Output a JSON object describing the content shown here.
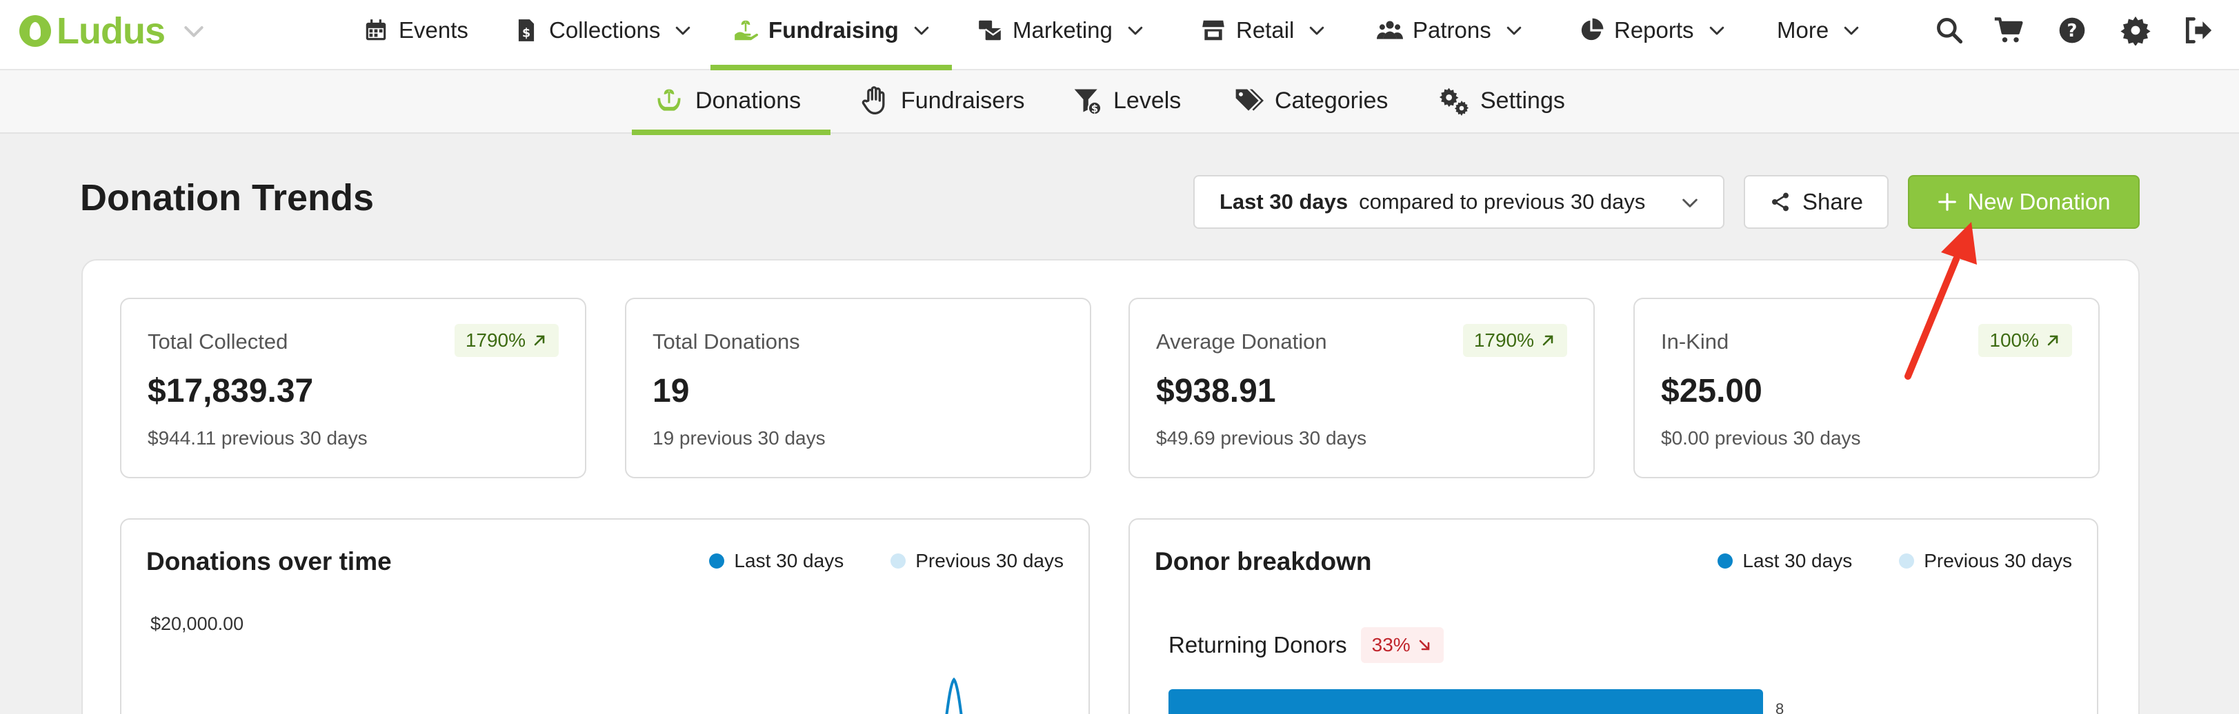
{
  "app": {
    "logo_text": "Ludus"
  },
  "nav": {
    "items": [
      {
        "label": "Events",
        "icon": "calendar-icon"
      },
      {
        "label": "Collections",
        "icon": "invoice-dollar-icon"
      },
      {
        "label": "Fundraising",
        "icon": "hand-holding-seedling-icon",
        "active": true
      },
      {
        "label": "Marketing",
        "icon": "mail-bulk-icon"
      },
      {
        "label": "Retail",
        "icon": "store-icon"
      },
      {
        "label": "Patrons",
        "icon": "users-icon"
      },
      {
        "label": "Reports",
        "icon": "pie-chart-icon"
      },
      {
        "label": "More",
        "icon": ""
      }
    ],
    "utility_icons": [
      "search-icon",
      "cart-icon",
      "help-icon",
      "gear-icon",
      "sign-out-icon"
    ]
  },
  "subnav": {
    "items": [
      {
        "label": "Donations",
        "icon": "hand-holding-seedling-icon",
        "active": true
      },
      {
        "label": "Fundraisers",
        "icon": "raised-hand-icon"
      },
      {
        "label": "Levels",
        "icon": "filter-dollar-icon"
      },
      {
        "label": "Categories",
        "icon": "tags-icon"
      },
      {
        "label": "Settings",
        "icon": "gears-icon"
      }
    ]
  },
  "header": {
    "title": "Donation Trends",
    "range_bold": "Last 30 days",
    "range_rest": "compared to previous 30 days",
    "share_label": "Share",
    "new_label": "New Donation"
  },
  "stats": [
    {
      "label": "Total Collected",
      "value": "$17,839.37",
      "prev": "$944.11 previous 30 days",
      "badge": "1790%"
    },
    {
      "label": "Total Donations",
      "value": "19",
      "prev": "19 previous 30 days",
      "badge": ""
    },
    {
      "label": "Average Donation",
      "value": "$938.91",
      "prev": "$49.69 previous 30 days",
      "badge": "1790%"
    },
    {
      "label": "In-Kind",
      "value": "$25.00",
      "prev": "$0.00 previous 30 days",
      "badge": "100%"
    }
  ],
  "donations_chart": {
    "title": "Donations over time",
    "legend_current": "Last 30 days",
    "legend_previous": "Previous 30 days",
    "y_top_label": "$20,000.00"
  },
  "donor_breakdown": {
    "title": "Donor breakdown",
    "legend_current": "Last 30 days",
    "legend_previous": "Previous 30 days",
    "row_label": "Returning Donors",
    "row_badge": "33%",
    "bar_value_partial": "8"
  },
  "colors": {
    "brand_green": "#8cc63f",
    "current_series": "#0a85c9",
    "previous_series": "#cfe8f6",
    "annotation_arrow": "#ee3322"
  }
}
